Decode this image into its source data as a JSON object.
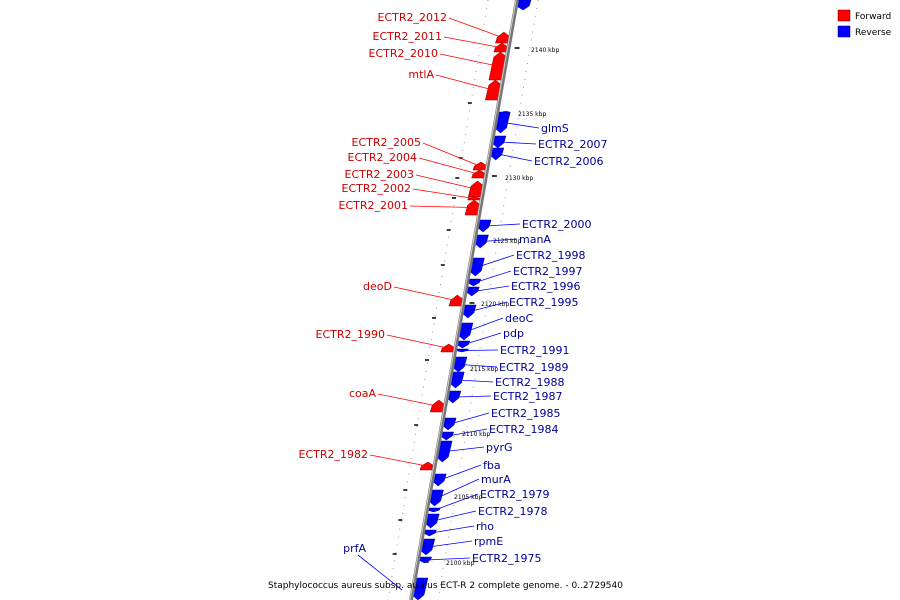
{
  "caption": "Staphylococcus aureus subsp. aureus ECT-R 2 complete genome. - 0..2729540",
  "legend": {
    "forward": {
      "label": "Forward",
      "color": "#ff0000"
    },
    "reverse": {
      "label": "Reverse",
      "color": "#0000ff"
    }
  },
  "ticks": [
    "2140 kbp",
    "2135 kbp",
    "2130 kbp",
    "2125 kbp",
    "2120 kbp",
    "2115 kbp",
    "2110 kbp",
    "2105 kbp",
    "2100 kbp"
  ],
  "forward_genes": [
    "ECTR2_2012",
    "ECTR2_2011",
    "ECTR2_2010",
    "mtlA",
    "ECTR2_2005",
    "ECTR2_2004",
    "ECTR2_2003",
    "ECTR2_2002",
    "ECTR2_2001",
    "deoD",
    "ECTR2_1990",
    "coaA",
    "ECTR2_1982"
  ],
  "reverse_genes": [
    "glmS",
    "ECTR2_2007",
    "ECTR2_2006",
    "ECTR2_2000",
    "manA",
    "ECTR2_1998",
    "ECTR2_1997",
    "ECTR2_1996",
    "ECTR2_1995",
    "deoC",
    "pdp",
    "ECTR2_1991",
    "ECTR2_1989",
    "ECTR2_1988",
    "ECTR2_1987",
    "ECTR2_1985",
    "ECTR2_1984",
    "pyrG",
    "fba",
    "murA",
    "ECTR2_1979",
    "ECTR2_1978",
    "rho",
    "rpmE",
    "ECTR2_1975",
    "prfA"
  ]
}
